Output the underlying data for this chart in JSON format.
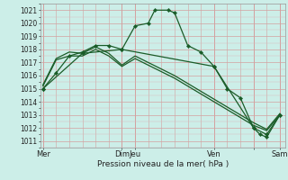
{
  "background_color": "#cceee8",
  "grid_color_major": "#d4a0a0",
  "grid_color_minor": "#ddb8b8",
  "line_color": "#1a5c28",
  "xlabel": "Pression niveau de la mer( hPa )",
  "ylim": [
    1010.5,
    1021.5
  ],
  "yticks": [
    1011,
    1012,
    1013,
    1014,
    1015,
    1016,
    1017,
    1018,
    1019,
    1020,
    1021
  ],
  "xlim": [
    -0.2,
    18.4
  ],
  "num_xgrid": 19,
  "xtick_positions": [
    0,
    6,
    7,
    13,
    16,
    18
  ],
  "xtick_labels": [
    "Mer",
    "Dim",
    "Jeu",
    "Ven",
    "",
    "Sam"
  ],
  "vline_positions": [
    0,
    6,
    7,
    13,
    16,
    18
  ],
  "series": [
    {
      "x": [
        0,
        1,
        2,
        3,
        4,
        5,
        6,
        7,
        8,
        8.5,
        9.5,
        10,
        11,
        12,
        13,
        14,
        15,
        16,
        16.5,
        17,
        18
      ],
      "y": [
        1015.0,
        1016.2,
        1017.5,
        1017.8,
        1018.3,
        1018.3,
        1018.0,
        1019.8,
        1020.0,
        1021.0,
        1021.0,
        1020.8,
        1018.3,
        1017.8,
        1016.7,
        1015.0,
        1014.3,
        1012.0,
        1011.5,
        1011.3,
        1013.0
      ],
      "marker": "D",
      "markersize": 2.2,
      "linewidth": 0.9,
      "has_markers": true
    },
    {
      "x": [
        0,
        1,
        2,
        3,
        4,
        5,
        6,
        7,
        8,
        9,
        10,
        11,
        12,
        13,
        14,
        15,
        16,
        17,
        18
      ],
      "y": [
        1015.2,
        1017.2,
        1017.5,
        1017.5,
        1018.0,
        1017.5,
        1016.7,
        1017.3,
        1016.8,
        1016.3,
        1015.8,
        1015.2,
        1014.6,
        1014.0,
        1013.4,
        1012.8,
        1012.2,
        1011.8,
        1013.0
      ],
      "marker": "D",
      "markersize": 0,
      "linewidth": 0.9,
      "has_markers": false
    },
    {
      "x": [
        0,
        1,
        2,
        3,
        4,
        5,
        6,
        7,
        8,
        9,
        10,
        11,
        12,
        13,
        14,
        15,
        16,
        17,
        18
      ],
      "y": [
        1015.3,
        1017.3,
        1017.8,
        1017.7,
        1018.2,
        1017.7,
        1016.8,
        1017.5,
        1017.0,
        1016.5,
        1016.0,
        1015.4,
        1014.8,
        1014.2,
        1013.6,
        1013.0,
        1012.4,
        1011.9,
        1013.1
      ],
      "marker": "D",
      "markersize": 0,
      "linewidth": 0.9,
      "has_markers": false
    },
    {
      "x": [
        0,
        3,
        6,
        13,
        16,
        17,
        18
      ],
      "y": [
        1015.0,
        1017.7,
        1018.0,
        1016.7,
        1012.0,
        1011.5,
        1013.0
      ],
      "marker": "D",
      "markersize": 2.2,
      "linewidth": 0.9,
      "has_markers": true
    }
  ]
}
